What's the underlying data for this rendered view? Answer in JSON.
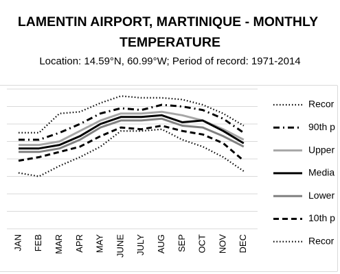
{
  "title_line1": "LAMENTIN AIRPORT, MARTINIQUE - MONTHLY",
  "title_line2": "TEMPERATURE",
  "subtitle": "Location: 14.59°N, 60.99°W; Period of record: 1971-2014",
  "chart_data": {
    "type": "line",
    "title": "LAMENTIN AIRPORT, MARTINIQUE - MONTHLY TEMPERATURE",
    "subtitle": "Location: 14.59°N, 60.99°W; Period of record: 1971-2014",
    "categories": [
      "JAN",
      "FEB",
      "MAR",
      "APR",
      "MAY",
      "JUNE",
      "JULY",
      "AUG",
      "SEP",
      "OCT",
      "NOV",
      "DEC"
    ],
    "ylim": [
      0,
      8
    ],
    "grid": true,
    "legend_position": "right",
    "series": [
      {
        "name": "Recor",
        "style": "dotted",
        "color": "#000000",
        "values": [
          5.5,
          5.5,
          6.6,
          6.7,
          7.2,
          7.6,
          7.5,
          7.5,
          7.4,
          7.1,
          6.6,
          5.9
        ]
      },
      {
        "name": "90th p",
        "style": "dashdot",
        "color": "#000000",
        "values": [
          5.1,
          5.1,
          5.5,
          6.0,
          6.6,
          6.9,
          6.8,
          7.1,
          7.0,
          6.8,
          6.3,
          5.5
        ]
      },
      {
        "name": "Upper",
        "style": "solid",
        "color": "#a6a6a6",
        "values": [
          4.8,
          4.8,
          5.0,
          5.6,
          6.2,
          6.6,
          6.6,
          6.7,
          6.5,
          6.2,
          5.7,
          5.1
        ]
      },
      {
        "name": "Media",
        "style": "solid",
        "color": "#000000",
        "values": [
          4.6,
          4.6,
          4.8,
          5.3,
          6.0,
          6.4,
          6.4,
          6.5,
          6.1,
          6.2,
          5.6,
          4.9
        ]
      },
      {
        "name": "Lower",
        "style": "solid",
        "color": "#808080",
        "values": [
          4.4,
          4.4,
          4.6,
          5.1,
          5.8,
          6.2,
          6.2,
          6.3,
          5.9,
          5.8,
          5.3,
          4.7
        ]
      },
      {
        "name": "10th p",
        "style": "dashed",
        "color": "#000000",
        "values": [
          3.9,
          4.1,
          4.4,
          4.7,
          5.3,
          5.8,
          5.7,
          5.9,
          5.6,
          5.4,
          4.9,
          3.9
        ]
      },
      {
        "name": "Recor",
        "style": "dotted",
        "color": "#000000",
        "values": [
          3.2,
          3.0,
          3.6,
          4.1,
          4.7,
          5.6,
          5.6,
          5.7,
          5.1,
          4.7,
          4.1,
          3.3
        ]
      }
    ]
  }
}
